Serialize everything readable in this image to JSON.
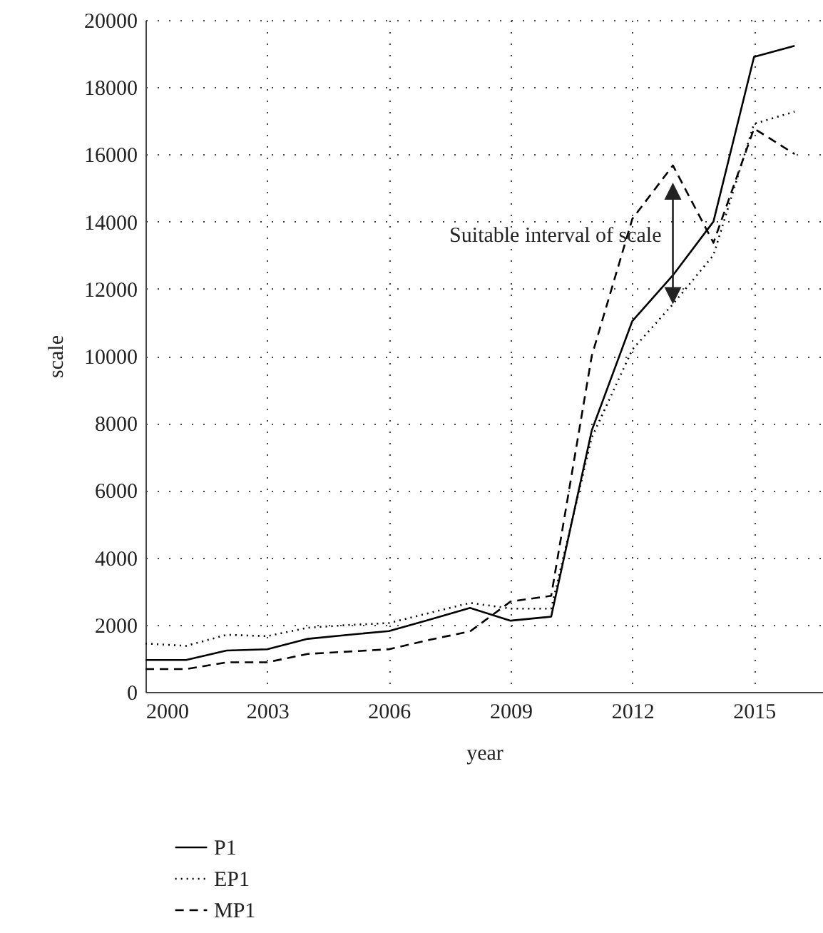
{
  "chart_data": {
    "type": "line",
    "xlabel": "year",
    "ylabel": "scale",
    "x": [
      2000,
      2001,
      2002,
      2003,
      2004,
      2005,
      2006,
      2007,
      2008,
      2009,
      2010,
      2011,
      2012,
      2013,
      2014,
      2015,
      2016
    ],
    "series": [
      {
        "name": "P1",
        "color": "#000000",
        "line_style": "solid",
        "values": [
          950,
          950,
          1230,
          1270,
          1580,
          1700,
          1810,
          2150,
          2500,
          2120,
          2240,
          7780,
          11040,
          12400,
          14000,
          18900,
          19230
        ]
      },
      {
        "name": "EP1",
        "color": "#000000",
        "line_style": "dotted",
        "values": [
          1440,
          1370,
          1700,
          1660,
          1910,
          1990,
          2050,
          2350,
          2650,
          2480,
          2480,
          7570,
          10190,
          11540,
          13000,
          16910,
          17270
        ]
      },
      {
        "name": "MP1",
        "color": "#000000",
        "line_style": "dashed",
        "values": [
          680,
          680,
          880,
          880,
          1130,
          1200,
          1270,
          1550,
          1800,
          2690,
          2860,
          10000,
          14080,
          15670,
          13370,
          16770,
          16010
        ]
      }
    ],
    "xlim": [
      2000,
      2016.7
    ],
    "xticks": [
      2000,
      2003,
      2006,
      2009,
      2012,
      2015
    ],
    "ylim": [
      0,
      20000
    ],
    "yticks": [
      0,
      2000,
      4000,
      6000,
      8000,
      10000,
      12000,
      14000,
      16000,
      18000,
      20000
    ],
    "grid": true,
    "legend": "bottom left",
    "marker": "none",
    "annotations": [
      "Suitable interval of scale"
    ]
  }
}
